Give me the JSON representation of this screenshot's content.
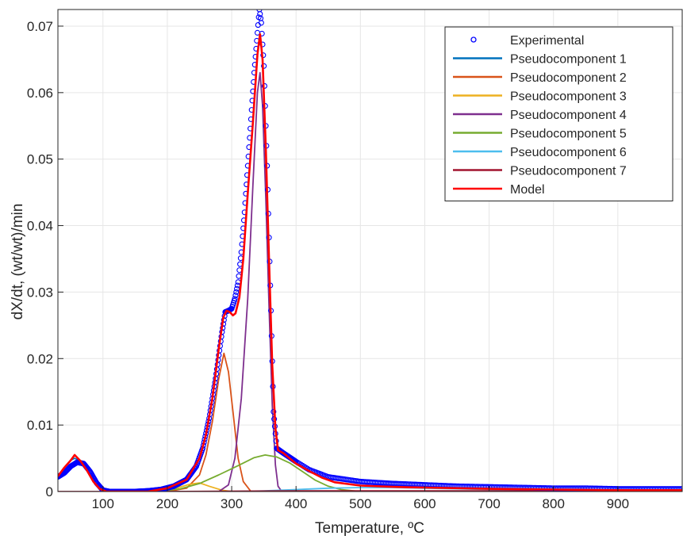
{
  "chart_data": {
    "type": "line",
    "xlabel": "Temperature, ºC",
    "ylabel": "dX/dt, (wt/wt)/min",
    "xlim": [
      30,
      1000
    ],
    "ylim": [
      0,
      0.0725
    ],
    "xticks": [
      100,
      200,
      300,
      400,
      500,
      600,
      700,
      800,
      900
    ],
    "yticks": [
      0,
      0.01,
      0.02,
      0.03,
      0.04,
      0.05,
      0.06,
      0.07
    ],
    "ytick_labels": [
      "0",
      "0.01",
      "0.02",
      "0.03",
      "0.04",
      "0.05",
      "0.06",
      "0.07"
    ],
    "grid": true,
    "legend_position": "top-right",
    "series": [
      {
        "name": "Experimental",
        "style": "markers",
        "color": "#0000ff",
        "points": [
          [
            30,
            0.0022
          ],
          [
            40,
            0.0028
          ],
          [
            50,
            0.0038
          ],
          [
            60,
            0.0044
          ],
          [
            70,
            0.0042
          ],
          [
            80,
            0.003
          ],
          [
            90,
            0.0013
          ],
          [
            100,
            0.0002
          ],
          [
            110,
            0
          ],
          [
            150,
            0
          ],
          [
            170,
            0.0001
          ],
          [
            190,
            0.0003
          ],
          [
            210,
            0.0008
          ],
          [
            230,
            0.0018
          ],
          [
            245,
            0.0038
          ],
          [
            255,
            0.0065
          ],
          [
            265,
            0.011
          ],
          [
            275,
            0.017
          ],
          [
            285,
            0.024
          ],
          [
            290,
            0.027
          ],
          [
            295,
            0.0272
          ],
          [
            300,
            0.0275
          ],
          [
            305,
            0.029
          ],
          [
            310,
            0.0315
          ],
          [
            315,
            0.036
          ],
          [
            320,
            0.042
          ],
          [
            325,
            0.049
          ],
          [
            330,
            0.056
          ],
          [
            335,
            0.063
          ],
          [
            340,
            0.069
          ],
          [
            343,
            0.0725
          ],
          [
            346,
            0.0705
          ],
          [
            350,
            0.064
          ],
          [
            355,
            0.049
          ],
          [
            360,
            0.031
          ],
          [
            365,
            0.012
          ],
          [
            370,
            0.0065
          ],
          [
            380,
            0.0058
          ],
          [
            400,
            0.0045
          ],
          [
            420,
            0.0033
          ],
          [
            450,
            0.0022
          ],
          [
            500,
            0.0015
          ],
          [
            550,
            0.0012
          ],
          [
            600,
            0.001
          ],
          [
            650,
            0.0008
          ],
          [
            700,
            0.0007
          ],
          [
            750,
            0.0006
          ],
          [
            800,
            0.0005
          ],
          [
            850,
            0.0005
          ],
          [
            900,
            0.0004
          ],
          [
            950,
            0.0004
          ],
          [
            1000,
            0.0004
          ]
        ]
      },
      {
        "name": "Pseudocomponent 1",
        "color": "#0072bd",
        "points": [
          [
            30,
            0.0023
          ],
          [
            40,
            0.0036
          ],
          [
            50,
            0.0047
          ],
          [
            56,
            0.005
          ],
          [
            65,
            0.0046
          ],
          [
            75,
            0.0032
          ],
          [
            85,
            0.0015
          ],
          [
            95,
            0.0004
          ],
          [
            105,
            0
          ],
          [
            1000,
            0
          ]
        ]
      },
      {
        "name": "Pseudocomponent 2",
        "color": "#d95319",
        "points": [
          [
            200,
            0
          ],
          [
            230,
            0.0005
          ],
          [
            250,
            0.0025
          ],
          [
            260,
            0.0055
          ],
          [
            270,
            0.0105
          ],
          [
            280,
            0.017
          ],
          [
            288,
            0.0208
          ],
          [
            295,
            0.018
          ],
          [
            302,
            0.012
          ],
          [
            310,
            0.005
          ],
          [
            318,
            0.0015
          ],
          [
            330,
            0
          ],
          [
            1000,
            0
          ]
        ]
      },
      {
        "name": "Pseudocomponent 3",
        "color": "#edb120",
        "points": [
          [
            180,
            0
          ],
          [
            210,
            0.0004
          ],
          [
            235,
            0.0011
          ],
          [
            250,
            0.0013
          ],
          [
            265,
            0.0008
          ],
          [
            285,
            0.0002
          ],
          [
            300,
            0
          ],
          [
            1000,
            0
          ]
        ]
      },
      {
        "name": "Pseudocomponent 4",
        "color": "#7e2f8e",
        "points": [
          [
            280,
            0
          ],
          [
            295,
            0.001
          ],
          [
            305,
            0.005
          ],
          [
            315,
            0.014
          ],
          [
            325,
            0.029
          ],
          [
            333,
            0.046
          ],
          [
            340,
            0.06
          ],
          [
            344,
            0.063
          ],
          [
            348,
            0.058
          ],
          [
            353,
            0.044
          ],
          [
            358,
            0.028
          ],
          [
            363,
            0.013
          ],
          [
            368,
            0.004
          ],
          [
            372,
            0.0008
          ],
          [
            378,
            0
          ],
          [
            1000,
            0
          ]
        ]
      },
      {
        "name": "Pseudocomponent 5",
        "color": "#77ac30",
        "points": [
          [
            180,
            0
          ],
          [
            220,
            0.0004
          ],
          [
            250,
            0.0012
          ],
          [
            280,
            0.0025
          ],
          [
            310,
            0.0039
          ],
          [
            335,
            0.0051
          ],
          [
            352,
            0.0055
          ],
          [
            370,
            0.0052
          ],
          [
            390,
            0.0043
          ],
          [
            410,
            0.003
          ],
          [
            430,
            0.0017
          ],
          [
            450,
            0.0008
          ],
          [
            470,
            0.0003
          ],
          [
            500,
            0
          ],
          [
            1000,
            0
          ]
        ]
      },
      {
        "name": "Pseudocomponent 6",
        "color": "#4dbeee",
        "points": [
          [
            300,
            0
          ],
          [
            350,
            0.0001
          ],
          [
            400,
            0.0003
          ],
          [
            450,
            0.0005
          ],
          [
            500,
            0.0006
          ],
          [
            550,
            0.0006
          ],
          [
            600,
            0.0005
          ],
          [
            650,
            0.0004
          ],
          [
            700,
            0.0003
          ],
          [
            800,
            0.0002
          ],
          [
            900,
            0.0001
          ],
          [
            1000,
            0.0001
          ]
        ]
      },
      {
        "name": "Pseudocomponent 7",
        "color": "#a2142f",
        "points": [
          [
            30,
            0
          ],
          [
            200,
            0
          ],
          [
            400,
            0.0001
          ],
          [
            600,
            0.0001
          ],
          [
            800,
            0.0001
          ],
          [
            1000,
            0.0001
          ]
        ]
      },
      {
        "name": "Model",
        "color": "#ff0000",
        "points": [
          [
            30,
            0.0023
          ],
          [
            40,
            0.0036
          ],
          [
            50,
            0.0047
          ],
          [
            56,
            0.0055
          ],
          [
            65,
            0.0046
          ],
          [
            75,
            0.0032
          ],
          [
            85,
            0.0015
          ],
          [
            95,
            0.0004
          ],
          [
            105,
            0
          ],
          [
            170,
            0
          ],
          [
            200,
            0.0005
          ],
          [
            230,
            0.0018
          ],
          [
            250,
            0.005
          ],
          [
            260,
            0.0085
          ],
          [
            270,
            0.014
          ],
          [
            280,
            0.0215
          ],
          [
            287,
            0.0262
          ],
          [
            292,
            0.0272
          ],
          [
            297,
            0.027
          ],
          [
            302,
            0.0265
          ],
          [
            306,
            0.0268
          ],
          [
            312,
            0.0292
          ],
          [
            318,
            0.035
          ],
          [
            325,
            0.0448
          ],
          [
            333,
            0.0555
          ],
          [
            340,
            0.0657
          ],
          [
            344,
            0.0688
          ],
          [
            348,
            0.065
          ],
          [
            353,
            0.0515
          ],
          [
            358,
            0.035
          ],
          [
            363,
            0.019
          ],
          [
            368,
            0.0095
          ],
          [
            372,
            0.0062
          ],
          [
            380,
            0.0058
          ],
          [
            390,
            0.005
          ],
          [
            400,
            0.0042
          ],
          [
            420,
            0.0031
          ],
          [
            440,
            0.0021
          ],
          [
            460,
            0.0014
          ],
          [
            500,
            0.0009
          ],
          [
            550,
            0.0007
          ],
          [
            600,
            0.0006
          ],
          [
            700,
            0.0004
          ],
          [
            800,
            0.0003
          ],
          [
            900,
            0.0002
          ],
          [
            1000,
            0.0002
          ]
        ]
      }
    ]
  }
}
